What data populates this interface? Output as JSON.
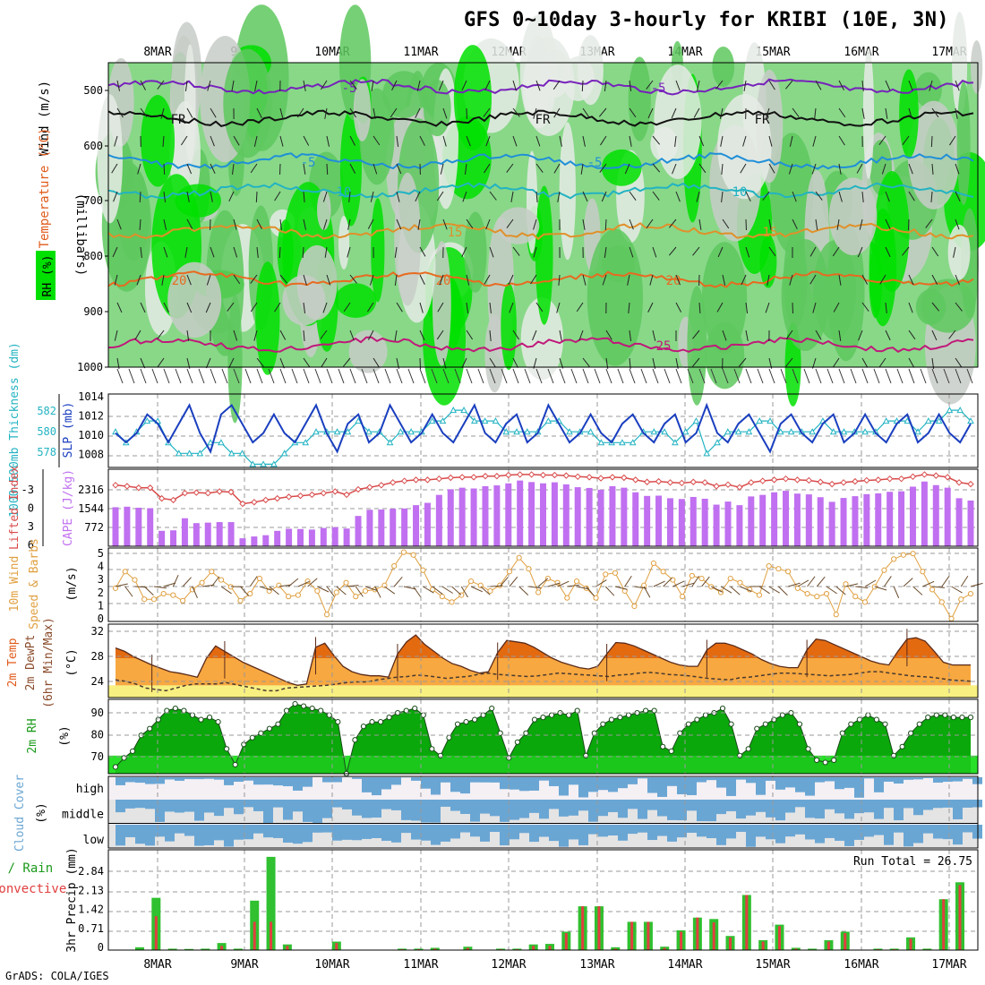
{
  "title": "GFS 0~10day 3-hourly for KRIBI (10E, 3N)",
  "footer": "GrADS: COLA/IGES",
  "dates": [
    "8MAR",
    "9MAR",
    "10MAR",
    "11MAR",
    "12MAR",
    "13MAR",
    "14MAR",
    "15MAR",
    "16MAR",
    "17MAR"
  ],
  "colors": {
    "rh_light": "#88d888",
    "rh_mid": "#5ec85e",
    "rh_bright": "#00e000",
    "rh_dry": "#c8ccc8",
    "rh_vdry": "#e6ebe6",
    "slp": "#1a3fbf",
    "thickness": "#22b3c2",
    "lifted": "#d94a4a",
    "cape": "#c070f0",
    "wind10": "#e0a040",
    "precip": "#30c030",
    "conv": "#e04040",
    "cloud": "#6aa6d4",
    "cloud_bg": "#e4e4e4",
    "temp_dark": "#e46a10",
    "temp_mid": "#f7a840",
    "temp_low": "#f8f080"
  },
  "panels": {
    "upper": {
      "label_wind": "Wind (m/s)",
      "label_temp": "Temperature (°C)",
      "label_rh": "RH (%)",
      "label_mb": "(millibars)",
      "yticks": [
        "500",
        "600",
        "700",
        "800",
        "900",
        "1000"
      ]
    },
    "slp": {
      "label_thick": "1000-500mb Thickness (dm)",
      "label_slp": "SLP (mb)",
      "yticks_slp": [
        "1014",
        "1012",
        "1010",
        "1008"
      ],
      "yticks_thick": [
        "582",
        "580",
        "578"
      ]
    },
    "cape": {
      "label_li": "Lifted Index",
      "label_cape": "CAPE (J/kg)",
      "yticks_li": [
        "-3",
        "0",
        "3",
        "6"
      ],
      "yticks_cape": [
        "2316",
        "1544",
        "772"
      ]
    },
    "wind10": {
      "label": "10m Wind Speed & Barbs",
      "unit": "(m/s)",
      "yticks": [
        "5",
        "4",
        "3",
        "2",
        "1",
        "0"
      ]
    },
    "temp2m": {
      "label1": "2m Temp",
      "label2": "2m DewPt",
      "label3": "(6hr Min/Max)",
      "unit": "(°C)",
      "yticks": [
        "32",
        "28",
        "24"
      ]
    },
    "rh2m": {
      "label": "2m RH",
      "unit": "(%)",
      "yticks": [
        "90",
        "80",
        "70"
      ]
    },
    "cloud": {
      "label": "Cloud Cover",
      "unit": "(%)",
      "levels": [
        "high",
        "middle",
        "low"
      ]
    },
    "precip": {
      "label_total": "Total / Rain",
      "label_conv": "Convective",
      "label_main": "3hr Precip (mm)",
      "run_total": "Run Total = 26.75",
      "yticks": [
        "2.84",
        "2.13",
        "1.42",
        "0.71",
        "0"
      ]
    }
  },
  "chart_data": [
    {
      "type": "heatmap",
      "name": "upper_rh",
      "ylabel": "(millibars)",
      "levels_mb": [
        500,
        600,
        700,
        800,
        900,
        1000
      ],
      "isotherms": [
        {
          "label": "-5",
          "p_mb": 500
        },
        {
          "label": "FR",
          "p_mb": 575
        },
        {
          "label": "-5",
          "p_mb": 630
        },
        {
          "label": "10",
          "p_mb": 690
        },
        {
          "label": "15",
          "p_mb": 750
        },
        {
          "label": "20",
          "p_mb": 830
        },
        {
          "label": "25",
          "p_mb": 960
        }
      ]
    },
    {
      "type": "line",
      "name": "slp_thickness",
      "slp_mb": [
        1010,
        1009,
        1010,
        1012,
        1011,
        1009,
        1011,
        1013,
        1010,
        1008,
        1012,
        1013,
        1011,
        1009,
        1010,
        1012,
        1010,
        1009,
        1011,
        1013,
        1010,
        1008,
        1011,
        1012,
        1009,
        1010,
        1013,
        1011,
        1009,
        1010,
        1012,
        1010,
        1009,
        1011,
        1013,
        1010,
        1009,
        1011,
        1012,
        1009,
        1010,
        1013,
        1011,
        1009,
        1010,
        1012,
        1010,
        1009,
        1011,
        1012,
        1010,
        1009,
        1011,
        1012,
        1009,
        1010,
        1013,
        1010,
        1009,
        1011,
        1012,
        1010,
        1008,
        1011,
        1012,
        1010,
        1009,
        1011,
        1012,
        1009,
        1010,
        1012,
        1010,
        1009,
        1011,
        1012,
        1009,
        1010,
        1012,
        1010,
        1009,
        1011
      ],
      "thickness_dm": [
        580,
        579,
        580,
        581,
        581,
        579,
        578,
        578,
        578,
        579,
        579,
        578,
        578,
        577,
        577,
        577,
        578,
        579,
        579,
        580,
        580,
        580,
        580,
        581,
        580,
        580,
        579,
        580,
        580,
        580,
        581,
        581,
        582,
        582,
        581,
        581,
        581,
        580,
        580,
        580,
        580,
        581,
        581,
        580,
        580,
        580,
        579,
        579,
        579,
        579,
        580,
        580,
        580,
        579,
        580,
        581,
        578,
        579,
        580,
        580,
        580,
        581,
        581,
        580,
        580,
        580,
        580,
        581,
        580,
        580,
        580,
        580,
        580,
        581,
        581,
        581,
        580,
        581,
        581,
        582,
        582,
        581
      ]
    },
    {
      "type": "bar",
      "name": "cape_li",
      "cape": [
        1520,
        1540,
        1500,
        1480,
        600,
        620,
        1090,
        900,
        920,
        940,
        940,
        310,
        380,
        430,
        600,
        680,
        670,
        650,
        710,
        740,
        690,
        1180,
        1420,
        1430,
        1460,
        1470,
        1600,
        1690,
        2000,
        2220,
        2280,
        2250,
        2340,
        2370,
        2450,
        2560,
        2500,
        2450,
        2490,
        2410,
        2300,
        2270,
        2200,
        2340,
        2280,
        2100,
        1960,
        1970,
        1870,
        1840,
        1920,
        1850,
        1620,
        1740,
        1600,
        1940,
        2000,
        2100,
        2160,
        2050,
        2020,
        1910,
        1730,
        1880,
        1950,
        2030,
        2060,
        2120,
        2140,
        2320,
        2520,
        2380,
        2280,
        1870,
        1780
      ],
      "lifted_index": [
        -5,
        -4.8,
        -4.5,
        -4.5,
        -2.5,
        -2.2,
        -3.5,
        -3.6,
        -3.5,
        -3.8,
        -3.7,
        -1.5,
        -1.8,
        -2.2,
        -2.5,
        -2.8,
        -3,
        -3.2,
        -3.5,
        -3.8,
        -3.2,
        -4.2,
        -4.6,
        -5,
        -5.5,
        -5.8,
        -6,
        -6,
        -6.2,
        -6.4,
        -6.5,
        -6.5,
        -6.7,
        -6.7,
        -6.9,
        -7,
        -7,
        -6.9,
        -6.9,
        -6.8,
        -6.6,
        -6.5,
        -6.3,
        -6.5,
        -6.4,
        -6,
        -5.6,
        -5.7,
        -5.5,
        -5.4,
        -5.6,
        -5.5,
        -4.8,
        -5.1,
        -4.6,
        -5.5,
        -5.8,
        -6,
        -6.2,
        -6,
        -5.9,
        -5.6,
        -5.2,
        -5.5,
        -5.7,
        -5.9,
        -6,
        -6.2,
        -6.2,
        -6.6,
        -7,
        -6.8,
        -6.5,
        -5.5,
        -5.2
      ]
    },
    {
      "type": "line",
      "name": "wind10m",
      "speed": [
        2.4,
        3.6,
        3,
        1.6,
        1.6,
        2,
        1.9,
        1.5,
        2.3,
        2.8,
        3.6,
        3,
        2.5,
        1.5,
        2,
        3.1,
        2.2,
        2.6,
        1.8,
        1.9,
        2.9,
        2.2,
        0.5,
        2.1,
        2.8,
        1.8,
        2.2,
        2.3,
        2.6,
        4,
        5,
        4.8,
        3.7,
        2.3,
        1.8,
        1.4,
        1.9,
        2.9,
        2.6,
        2.2,
        2.6,
        3.6,
        4.6,
        3.8,
        2.1,
        3.1,
        2.8,
        1.7,
        2.9,
        2.4,
        1.7,
        3.4,
        3.5,
        2.2,
        1.1,
        2.6,
        4.2,
        3.6,
        3,
        1.8,
        3.3,
        3.1,
        2.5,
        2.1,
        3.1,
        2.8,
        2.3,
        1.9,
        4,
        3.8,
        3.6,
        2.4,
        2,
        1.8,
        2,
        0.5,
        2.7,
        1.8,
        1.4,
        2.5,
        3.7,
        4.5,
        4.8,
        4.9,
        3.6,
        2.3,
        1.4,
        0.2,
        1.6,
        2
      ],
      "ylim": [
        0,
        5
      ]
    },
    {
      "type": "area",
      "name": "temp2m",
      "temp": [
        29.5,
        29,
        28.2,
        27.6,
        27,
        26.5,
        26,
        25.8,
        25.5,
        25.2,
        28,
        29.8,
        29,
        28.2,
        27.4,
        26.8,
        26.2,
        25.6,
        25,
        24.4,
        24,
        24.2,
        29.6,
        30.2,
        28.4,
        26.8,
        26,
        25.6,
        25.4,
        25.4,
        25.2,
        28.6,
        30.4,
        31.4,
        30,
        29,
        28,
        27.2,
        26.8,
        26.2,
        25.8,
        26,
        28.8,
        30.6,
        30.4,
        30.2,
        29.6,
        28.8,
        28,
        27.4,
        27,
        26.6,
        26.4,
        26.8,
        28.6,
        30.3,
        30.2,
        29.8,
        29.2,
        28.6,
        28,
        27.4,
        27,
        26.8,
        26.8,
        29.2,
        30.2,
        30.2,
        29.8,
        29.2,
        28.6,
        27.8,
        27.2,
        26.8,
        26.6,
        26.6,
        29.2,
        30.8,
        30.6,
        30,
        29.4,
        28.8,
        28.2,
        27.6,
        27.2,
        27,
        29,
        30.8,
        31,
        30.5,
        29,
        27.4,
        27,
        27,
        27
      ],
      "dewpoint": [
        24.8,
        24.6,
        24.2,
        23.6,
        23.4,
        23.2,
        23.6,
        24,
        24.2,
        24.2,
        24.2,
        24.4,
        24.1,
        23.8,
        23.5,
        23.2,
        23.2,
        23.6,
        23.7,
        23.8,
        23.9,
        24,
        24.2,
        24.4,
        24.5,
        24.5,
        24.8,
        25,
        25.2,
        25.3,
        25.5,
        25.4,
        25.2,
        25,
        25.2,
        25.3,
        25.6,
        25.8,
        25.6,
        25.5,
        25.4,
        25.3,
        25.4,
        25.6,
        25.8,
        25.7,
        25.6,
        25.5,
        25.4,
        25.3,
        25.5,
        25.6,
        25.8,
        25.9,
        25.8,
        25.6,
        25.5,
        25.4,
        25.2,
        25,
        24.9,
        24.8,
        25.1,
        25.2,
        25.4,
        25.6,
        25.8,
        25.8,
        25.7,
        25.6,
        25.5,
        25.4,
        25.5,
        25.6,
        25.8,
        26,
        26,
        25.8,
        25.6,
        25.4,
        25.3,
        25.2,
        25,
        24.8,
        24.7,
        24.6
      ],
      "ylim": [
        22,
        33
      ]
    },
    {
      "type": "area",
      "name": "rh2m",
      "rh": [
        65,
        69,
        72,
        79,
        82,
        86,
        90,
        91,
        90,
        88,
        86,
        87,
        85,
        73,
        66,
        75,
        78,
        80,
        82,
        84,
        90,
        93,
        92,
        91,
        90,
        88,
        85,
        62,
        77,
        83,
        85,
        85,
        87,
        89,
        90,
        91,
        88,
        73,
        70,
        78,
        84,
        85,
        86,
        88,
        91,
        80,
        69,
        76,
        80,
        86,
        87,
        88,
        89,
        88,
        90,
        70,
        80,
        84,
        86,
        87,
        88,
        89,
        90,
        90,
        74,
        72,
        80,
        84,
        86,
        88,
        89,
        91,
        84,
        70,
        73,
        82,
        84,
        86,
        88,
        89,
        84,
        73,
        68,
        67,
        68,
        80,
        84,
        86,
        88,
        86,
        84,
        70,
        74,
        80,
        84,
        87,
        88,
        88,
        87,
        87,
        87
      ],
      "ylim": [
        62,
        95
      ]
    },
    {
      "type": "bar",
      "name": "cloud_cover",
      "levels": [
        "high",
        "middle",
        "low"
      ]
    },
    {
      "type": "bar",
      "name": "precip_3hr",
      "run_total": 26.75,
      "total": [
        0.1,
        1.85,
        0.05,
        0.04,
        0.05,
        0.25,
        0.05,
        1.75,
        3.3,
        0.2,
        0,
        0,
        0.3,
        0,
        0,
        0,
        0.05,
        0.05,
        0.08,
        0,
        0.12,
        0,
        0.05,
        0.05,
        0.2,
        0.22,
        0.65,
        1.55,
        1.55,
        0.1,
        1.0,
        1.0,
        0.12,
        0.7,
        1.15,
        1.1,
        0.5,
        1.95,
        0.35,
        0.9,
        0.08,
        0.05,
        0.35,
        0.65,
        0,
        0.05,
        0.05,
        0.45,
        0.05,
        1.8,
        2.4
      ],
      "convective": [
        0,
        1.2,
        0.02,
        0.02,
        0.02,
        0.15,
        0.02,
        1.0,
        1.0,
        0.15,
        0,
        0,
        0.25,
        0,
        0,
        0,
        0.03,
        0.03,
        0.05,
        0,
        0.08,
        0,
        0.03,
        0.03,
        0.15,
        0.15,
        0.6,
        1.55,
        1.55,
        0.05,
        1.0,
        1.0,
        0.08,
        0.65,
        1.15,
        0.98,
        0.45,
        1.95,
        0.3,
        0.85,
        0.05,
        0.02,
        0.3,
        0.6,
        0,
        0.03,
        0.03,
        0.4,
        0.02,
        1.8,
        2.3
      ],
      "ylim": [
        0,
        3.55
      ]
    }
  ]
}
